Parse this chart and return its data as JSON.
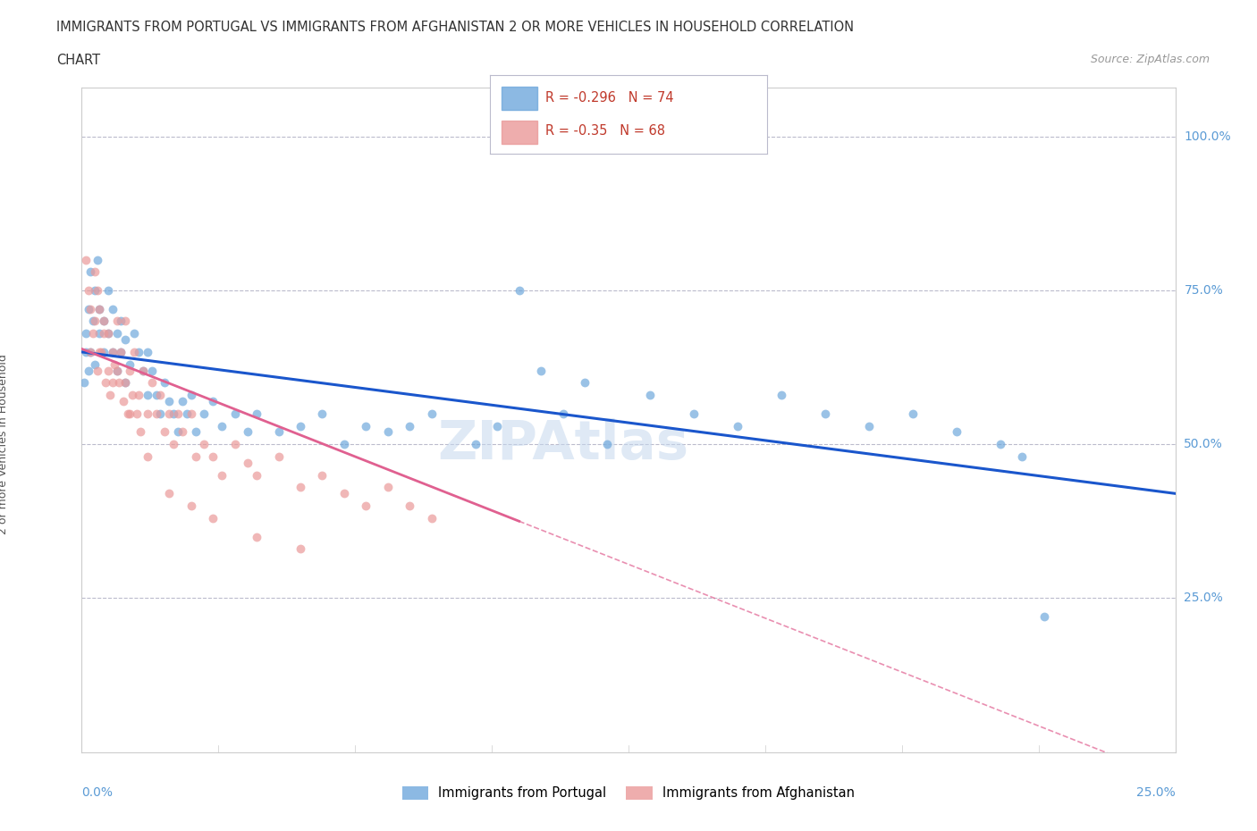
{
  "title_line1": "IMMIGRANTS FROM PORTUGAL VS IMMIGRANTS FROM AFGHANISTAN 2 OR MORE VEHICLES IN HOUSEHOLD CORRELATION",
  "title_line2": "CHART",
  "source": "Source: ZipAtlas.com",
  "xmin": 0.0,
  "xmax": 25.0,
  "ymin": 0.0,
  "ymax": 108.0,
  "portugal_R": -0.296,
  "portugal_N": 74,
  "afghanistan_R": -0.35,
  "afghanistan_N": 68,
  "portugal_color": "#6fa8dc",
  "afghanistan_color": "#ea9999",
  "portugal_line_color": "#1a56cc",
  "afghanistan_line_color": "#e06090",
  "hline_color": "#bbbbcc",
  "watermark_color": "#c5d8ee",
  "portugal_line_intercept": 65.0,
  "portugal_line_slope": -0.92,
  "afghanistan_line_intercept": 65.5,
  "afghanistan_line_slope": -2.8,
  "afghanistan_x_max_solid": 10.0,
  "portugal_scatter": [
    [
      0.1,
      68
    ],
    [
      0.15,
      72
    ],
    [
      0.2,
      65
    ],
    [
      0.2,
      78
    ],
    [
      0.25,
      70
    ],
    [
      0.3,
      75
    ],
    [
      0.3,
      63
    ],
    [
      0.35,
      80
    ],
    [
      0.4,
      68
    ],
    [
      0.4,
      72
    ],
    [
      0.5,
      65
    ],
    [
      0.5,
      70
    ],
    [
      0.6,
      68
    ],
    [
      0.6,
      75
    ],
    [
      0.7,
      65
    ],
    [
      0.7,
      72
    ],
    [
      0.8,
      62
    ],
    [
      0.8,
      68
    ],
    [
      0.9,
      65
    ],
    [
      0.9,
      70
    ],
    [
      1.0,
      60
    ],
    [
      1.0,
      67
    ],
    [
      1.1,
      63
    ],
    [
      1.2,
      68
    ],
    [
      1.3,
      65
    ],
    [
      1.4,
      62
    ],
    [
      1.5,
      58
    ],
    [
      1.5,
      65
    ],
    [
      1.6,
      62
    ],
    [
      1.7,
      58
    ],
    [
      1.8,
      55
    ],
    [
      1.9,
      60
    ],
    [
      2.0,
      57
    ],
    [
      2.1,
      55
    ],
    [
      2.2,
      52
    ],
    [
      2.3,
      57
    ],
    [
      2.4,
      55
    ],
    [
      2.5,
      58
    ],
    [
      2.6,
      52
    ],
    [
      2.8,
      55
    ],
    [
      3.0,
      57
    ],
    [
      3.2,
      53
    ],
    [
      3.5,
      55
    ],
    [
      3.8,
      52
    ],
    [
      4.0,
      55
    ],
    [
      4.5,
      52
    ],
    [
      5.0,
      53
    ],
    [
      5.5,
      55
    ],
    [
      6.0,
      50
    ],
    [
      6.5,
      53
    ],
    [
      7.0,
      52
    ],
    [
      7.5,
      53
    ],
    [
      8.0,
      55
    ],
    [
      9.0,
      50
    ],
    [
      9.5,
      53
    ],
    [
      10.0,
      75
    ],
    [
      10.5,
      62
    ],
    [
      11.0,
      55
    ],
    [
      11.5,
      60
    ],
    [
      12.0,
      50
    ],
    [
      13.0,
      58
    ],
    [
      14.0,
      55
    ],
    [
      15.0,
      53
    ],
    [
      16.0,
      58
    ],
    [
      17.0,
      55
    ],
    [
      18.0,
      53
    ],
    [
      19.0,
      55
    ],
    [
      20.0,
      52
    ],
    [
      21.0,
      50
    ],
    [
      21.5,
      48
    ],
    [
      22.0,
      22
    ],
    [
      0.05,
      60
    ],
    [
      0.1,
      65
    ],
    [
      0.15,
      62
    ]
  ],
  "afghanistan_scatter": [
    [
      0.1,
      80
    ],
    [
      0.15,
      75
    ],
    [
      0.2,
      72
    ],
    [
      0.2,
      65
    ],
    [
      0.3,
      78
    ],
    [
      0.3,
      70
    ],
    [
      0.35,
      75
    ],
    [
      0.4,
      72
    ],
    [
      0.4,
      65
    ],
    [
      0.5,
      70
    ],
    [
      0.5,
      68
    ],
    [
      0.6,
      68
    ],
    [
      0.6,
      62
    ],
    [
      0.7,
      65
    ],
    [
      0.7,
      60
    ],
    [
      0.8,
      70
    ],
    [
      0.8,
      62
    ],
    [
      0.9,
      65
    ],
    [
      1.0,
      60
    ],
    [
      1.0,
      70
    ],
    [
      1.1,
      62
    ],
    [
      1.1,
      55
    ],
    [
      1.2,
      65
    ],
    [
      1.3,
      58
    ],
    [
      1.4,
      62
    ],
    [
      1.5,
      55
    ],
    [
      1.6,
      60
    ],
    [
      1.7,
      55
    ],
    [
      1.8,
      58
    ],
    [
      1.9,
      52
    ],
    [
      2.0,
      55
    ],
    [
      2.1,
      50
    ],
    [
      2.2,
      55
    ],
    [
      2.3,
      52
    ],
    [
      2.5,
      55
    ],
    [
      2.6,
      48
    ],
    [
      2.8,
      50
    ],
    [
      3.0,
      48
    ],
    [
      3.2,
      45
    ],
    [
      3.5,
      50
    ],
    [
      3.8,
      47
    ],
    [
      4.0,
      45
    ],
    [
      4.5,
      48
    ],
    [
      5.0,
      43
    ],
    [
      5.5,
      45
    ],
    [
      6.0,
      42
    ],
    [
      6.5,
      40
    ],
    [
      7.0,
      43
    ],
    [
      7.5,
      40
    ],
    [
      8.0,
      38
    ],
    [
      0.25,
      68
    ],
    [
      0.35,
      62
    ],
    [
      0.45,
      65
    ],
    [
      0.55,
      60
    ],
    [
      0.65,
      58
    ],
    [
      0.75,
      63
    ],
    [
      0.85,
      60
    ],
    [
      0.95,
      57
    ],
    [
      1.05,
      55
    ],
    [
      1.15,
      58
    ],
    [
      1.25,
      55
    ],
    [
      1.35,
      52
    ],
    [
      1.5,
      48
    ],
    [
      2.0,
      42
    ],
    [
      2.5,
      40
    ],
    [
      3.0,
      38
    ],
    [
      4.0,
      35
    ],
    [
      5.0,
      33
    ]
  ]
}
